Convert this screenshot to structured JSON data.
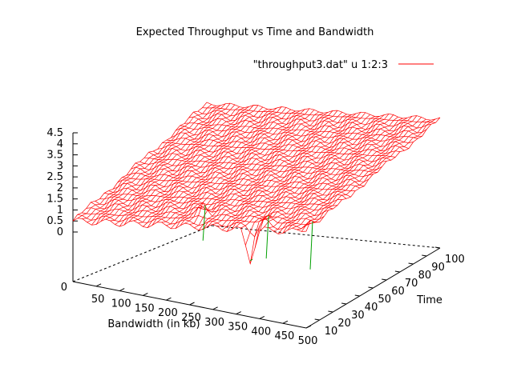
{
  "chart_data": {
    "type": "surface",
    "title": "Expected Throughput vs Time and Bandwidth",
    "legend": {
      "label": "\"throughput3.dat\" u 1:2:3",
      "color": "#ff0000",
      "placement": "top-right"
    },
    "xlabel": "Bandwidth (in kb)",
    "ylabel": "Time",
    "zlabel": "",
    "x_ticks": [
      "50",
      "100",
      "150",
      "200",
      "250",
      "300",
      "350",
      "400",
      "450",
      "500"
    ],
    "y_ticks": [
      "10",
      "20",
      "30",
      "40",
      "50",
      "60",
      "70",
      "80",
      "90",
      "100"
    ],
    "z_ticks": [
      "0",
      "0.5",
      "1",
      "1.5",
      "2",
      "2.5",
      "3",
      "3.5",
      "4",
      "4.5"
    ],
    "xlim": [
      0,
      500
    ],
    "ylim": [
      0,
      100
    ],
    "zlim": [
      0,
      4.5
    ],
    "base_z_label": "0",
    "surface_color": "#ff0000",
    "underside_color": "#00a000",
    "grid": false,
    "description_values": {
      "z_at_x0_y0": 0.5,
      "z_at_x0_y100": 2.2,
      "z_at_x500_y0": 2.1,
      "z_at_x500_y100": 3.6,
      "spike_regions": [
        {
          "x": 250,
          "y": 10,
          "z_peak": 2.4
        },
        {
          "x": 400,
          "y": 5,
          "z_peak": 2.6
        },
        {
          "x": 500,
          "y": 3,
          "z_peak": 2.8
        },
        {
          "x": 380,
          "y": 0,
          "z_low": -0.8
        }
      ]
    }
  }
}
